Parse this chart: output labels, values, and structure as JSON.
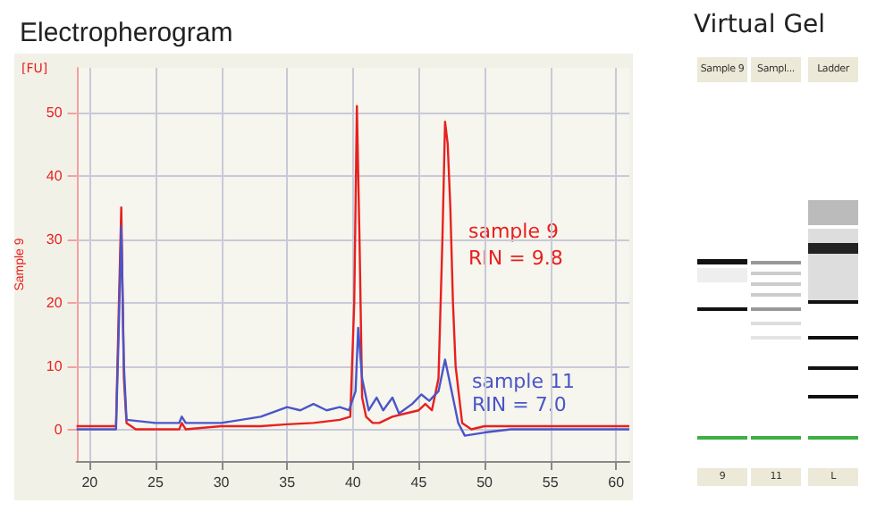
{
  "chart_data": [
    {
      "type": "line",
      "title": "Electropherogram",
      "ylabel": "Sample 9",
      "annotations": [
        "[FU]",
        "sample 9\nRIN = 9.8",
        "sample 11\nRIN = 7.0"
      ],
      "xlim": [
        19,
        61
      ],
      "xticks": [
        20,
        25,
        30,
        35,
        40,
        45,
        50,
        55,
        60
      ],
      "ylim": [
        -5,
        57
      ],
      "yticks": [
        0,
        10,
        20,
        30,
        40,
        50
      ],
      "grid": true,
      "marker": "none",
      "line_style": "solid",
      "series": [
        {
          "color": "#e8201e",
          "x": [
            19,
            20,
            21,
            22,
            22.2,
            22.4,
            22.6,
            22.8,
            23.5,
            25,
            26.8,
            27,
            27.3,
            30,
            33,
            35,
            37,
            39,
            39.8,
            40.1,
            40.3,
            40.5,
            40.7,
            41,
            41.5,
            42,
            43,
            44,
            45,
            45.5,
            46,
            46.5,
            46.8,
            47,
            47.2,
            47.4,
            47.6,
            47.8,
            48.3,
            49,
            50,
            52,
            55,
            61
          ],
          "values": [
            0.5,
            0.5,
            0.5,
            0.5,
            18,
            35,
            8,
            1,
            0,
            0,
            0,
            1,
            0,
            0.5,
            0.5,
            0.8,
            1,
            1.5,
            2,
            20,
            51,
            30,
            5,
            2,
            1,
            1,
            2,
            2.5,
            3,
            4,
            3,
            8,
            30,
            48.5,
            45,
            35,
            20,
            10,
            1,
            0,
            0.5,
            0.5,
            0.5,
            0.5
          ]
        },
        {
          "color": "#4a55c8",
          "x": [
            19,
            20,
            21,
            22,
            22.2,
            22.4,
            22.6,
            22.8,
            25,
            26.8,
            27,
            27.3,
            30,
            33,
            35,
            36,
            37,
            38,
            39,
            39.7,
            40.2,
            40.4,
            40.7,
            41.2,
            41.8,
            42.3,
            43,
            43.5,
            44.5,
            45.2,
            45.8,
            46.5,
            47,
            47.4,
            48,
            48.5,
            50,
            52,
            55,
            61
          ],
          "values": [
            0,
            0,
            0,
            0,
            15,
            32,
            10,
            1.5,
            1,
            1,
            2,
            1,
            1,
            2,
            3.5,
            3,
            4,
            3,
            3.5,
            3,
            6,
            16,
            8,
            3,
            5,
            3,
            5,
            2.5,
            4,
            5.5,
            4.5,
            6,
            11,
            7,
            1,
            -1,
            -0.5,
            0,
            0,
            0
          ]
        }
      ]
    },
    {
      "type": "other",
      "title": "Virtual Gel",
      "categories": [
        "Sample 9",
        "Sampl...",
        "Ladder"
      ],
      "annotations": [
        "9",
        "11",
        "L"
      ]
    }
  ]
}
